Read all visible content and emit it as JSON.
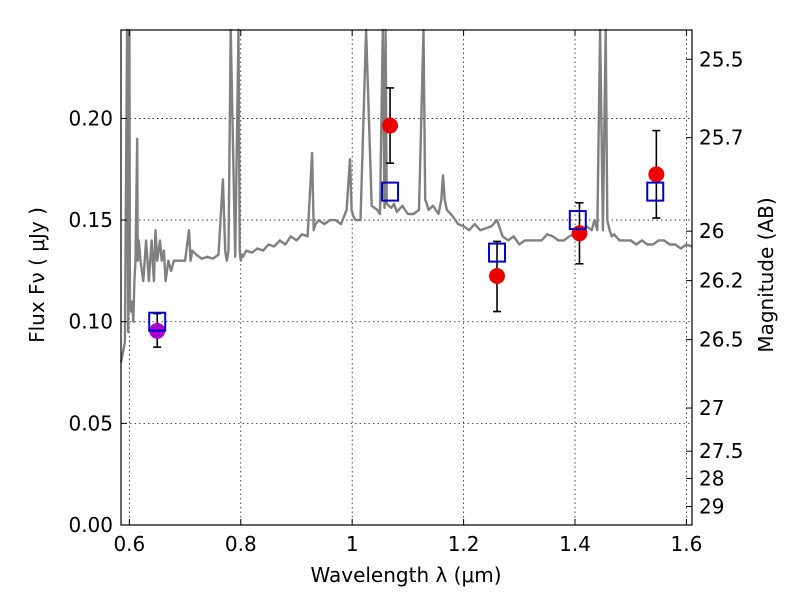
{
  "chart_data": {
    "type": "scatter",
    "xlabel": "Wavelength  λ (μm)",
    "ylabel": "Flux  Fν  ( μJy )",
    "y2label": "Magnitude (AB)",
    "xlim": [
      0.585,
      1.61
    ],
    "ylim": [
      0.0,
      0.2435
    ],
    "grid": true,
    "xticks": [
      {
        "v": 0.6,
        "label": "0.6"
      },
      {
        "v": 0.8,
        "label": "0.8"
      },
      {
        "v": 1.0,
        "label": "1"
      },
      {
        "v": 1.2,
        "label": "1.2"
      },
      {
        "v": 1.4,
        "label": "1.4"
      },
      {
        "v": 1.6,
        "label": "1.6"
      }
    ],
    "yticks": [
      {
        "v": 0.0,
        "label": "0.00"
      },
      {
        "v": 0.05,
        "label": "0.05"
      },
      {
        "v": 0.1,
        "label": "0.10"
      },
      {
        "v": 0.15,
        "label": "0.15"
      },
      {
        "v": 0.2,
        "label": "0.20"
      }
    ],
    "y2ticks": [
      {
        "mag": 25.5,
        "label": "25.5"
      },
      {
        "mag": 25.7,
        "label": "25.7"
      },
      {
        "mag": 26,
        "label": "26"
      },
      {
        "mag": 26.2,
        "label": "26.2"
      },
      {
        "mag": 26.5,
        "label": "26.5"
      },
      {
        "mag": 27,
        "label": "27"
      },
      {
        "mag": 27.5,
        "label": "27.5"
      },
      {
        "mag": 28,
        "label": "28"
      },
      {
        "mag": 29,
        "label": "29"
      }
    ],
    "model_spectrum": {
      "color": "#808080",
      "x": [
        0.585,
        0.592,
        0.596,
        0.598,
        0.6,
        0.601,
        0.603,
        0.605,
        0.607,
        0.609,
        0.611,
        0.614,
        0.615,
        0.617,
        0.62,
        0.625,
        0.63,
        0.635,
        0.64,
        0.644,
        0.647,
        0.65,
        0.655,
        0.658,
        0.662,
        0.665,
        0.67,
        0.675,
        0.68,
        0.685,
        0.69,
        0.7,
        0.707,
        0.71,
        0.713,
        0.72,
        0.73,
        0.74,
        0.75,
        0.76,
        0.768,
        0.772,
        0.775,
        0.778,
        0.782,
        0.79,
        0.796,
        0.798,
        0.8,
        0.802,
        0.804,
        0.81,
        0.82,
        0.83,
        0.84,
        0.85,
        0.86,
        0.87,
        0.88,
        0.89,
        0.9,
        0.91,
        0.92,
        0.928,
        0.931,
        0.934,
        0.94,
        0.95,
        0.96,
        0.97,
        0.98,
        0.99,
        0.996,
        0.999,
        1.002,
        1.006,
        1.015,
        1.025,
        1.035,
        1.045,
        1.05,
        1.055,
        1.058,
        1.06,
        1.062,
        1.066,
        1.07,
        1.075,
        1.08,
        1.09,
        1.1,
        1.11,
        1.12,
        1.128,
        1.131,
        1.134,
        1.137,
        1.145,
        1.155,
        1.16,
        1.163,
        1.166,
        1.17,
        1.18,
        1.19,
        1.2,
        1.21,
        1.22,
        1.23,
        1.24,
        1.25,
        1.26,
        1.27,
        1.28,
        1.29,
        1.3,
        1.31,
        1.32,
        1.33,
        1.34,
        1.35,
        1.36,
        1.37,
        1.38,
        1.39,
        1.4,
        1.41,
        1.42,
        1.43,
        1.435,
        1.44,
        1.445,
        1.45,
        1.455,
        1.458,
        1.462,
        1.466,
        1.47,
        1.48,
        1.49,
        1.5,
        1.51,
        1.52,
        1.53,
        1.54,
        1.55,
        1.56,
        1.57,
        1.58,
        1.59,
        1.6,
        1.61
      ],
      "y": [
        0.08,
        0.09,
        0.25,
        0.095,
        0.25,
        0.11,
        0.105,
        0.11,
        0.1,
        0.12,
        0.13,
        0.19,
        0.13,
        0.14,
        0.13,
        0.12,
        0.14,
        0.12,
        0.14,
        0.12,
        0.145,
        0.13,
        0.14,
        0.13,
        0.135,
        0.12,
        0.13,
        0.125,
        0.13,
        0.13,
        0.13,
        0.13,
        0.145,
        0.13,
        0.135,
        0.133,
        0.131,
        0.132,
        0.131,
        0.133,
        0.17,
        0.135,
        0.13,
        0.135,
        0.25,
        0.132,
        0.25,
        0.135,
        0.13,
        0.133,
        0.132,
        0.135,
        0.134,
        0.136,
        0.135,
        0.138,
        0.137,
        0.14,
        0.138,
        0.142,
        0.14,
        0.143,
        0.142,
        0.183,
        0.145,
        0.148,
        0.15,
        0.148,
        0.15,
        0.15,
        0.148,
        0.155,
        0.18,
        0.155,
        0.152,
        0.15,
        0.15,
        0.25,
        0.157,
        0.155,
        0.153,
        0.25,
        0.156,
        0.25,
        0.158,
        0.157,
        0.156,
        0.158,
        0.154,
        0.157,
        0.153,
        0.153,
        0.155,
        0.25,
        0.16,
        0.158,
        0.155,
        0.157,
        0.153,
        0.16,
        0.172,
        0.16,
        0.155,
        0.152,
        0.148,
        0.147,
        0.145,
        0.148,
        0.145,
        0.146,
        0.147,
        0.15,
        0.142,
        0.14,
        0.142,
        0.138,
        0.14,
        0.14,
        0.14,
        0.14,
        0.143,
        0.142,
        0.14,
        0.14,
        0.142,
        0.143,
        0.144,
        0.147,
        0.145,
        0.15,
        0.145,
        0.25,
        0.145,
        0.25,
        0.15,
        0.145,
        0.142,
        0.143,
        0.14,
        0.14,
        0.14,
        0.138,
        0.14,
        0.138,
        0.138,
        0.14,
        0.14,
        0.138,
        0.138,
        0.136,
        0.138,
        0.137
      ]
    },
    "observed": [
      {
        "x": 0.65,
        "y": 0.0955,
        "yerr_low": 0.008,
        "yerr_high": 0.0085,
        "color": "#aa00cc"
      },
      {
        "x": 1.068,
        "y": 0.1965,
        "yerr_low": 0.0185,
        "yerr_high": 0.0185,
        "color": "#ee0000"
      },
      {
        "x": 1.26,
        "y": 0.1225,
        "yerr_low": 0.0175,
        "yerr_high": 0.017,
        "color": "#ee0000"
      },
      {
        "x": 1.408,
        "y": 0.1435,
        "yerr_low": 0.015,
        "yerr_high": 0.015,
        "color": "#ee0000"
      },
      {
        "x": 1.546,
        "y": 0.1725,
        "yerr_low": 0.0215,
        "yerr_high": 0.0215,
        "color": "#ee0000"
      }
    ],
    "model_photometry": {
      "color": "#0000cc",
      "points": [
        {
          "x": 0.65,
          "y": 0.1
        },
        {
          "x": 1.068,
          "y": 0.164
        },
        {
          "x": 1.26,
          "y": 0.134
        },
        {
          "x": 1.405,
          "y": 0.15
        },
        {
          "x": 1.544,
          "y": 0.164
        }
      ]
    }
  }
}
